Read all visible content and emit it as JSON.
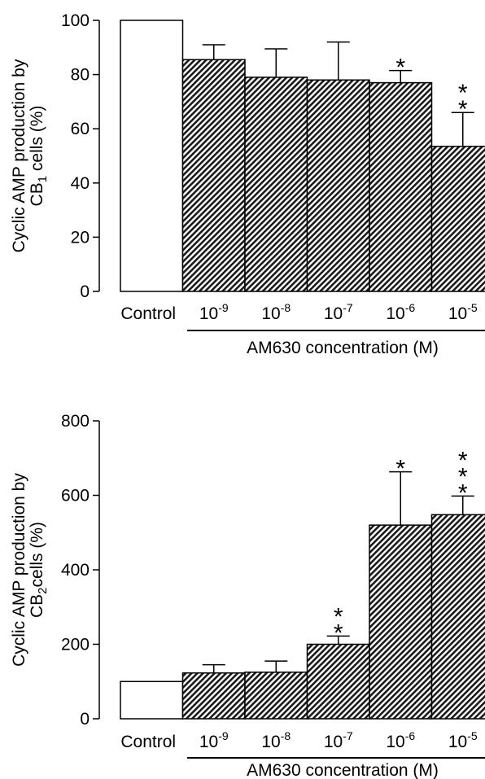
{
  "chart_data": [
    {
      "type": "bar",
      "ylabel_line1": "Cyclic AMP production by",
      "ylabel_line2_pre": "CB",
      "ylabel_line2_sub": "1",
      "ylabel_line2_post": " cells (%)",
      "xlabel": "AM630 concentration (M)",
      "ylim": [
        0,
        100
      ],
      "yticks": [
        "0",
        "20",
        "40",
        "60",
        "80",
        "100"
      ],
      "categories": [
        {
          "base": "Control",
          "exp": ""
        },
        {
          "base": "10",
          "exp": "-9"
        },
        {
          "base": "10",
          "exp": "-8"
        },
        {
          "base": "10",
          "exp": "-7"
        },
        {
          "base": "10",
          "exp": "-6"
        },
        {
          "base": "10",
          "exp": "-5"
        }
      ],
      "values": [
        100,
        85.5,
        79,
        78,
        77,
        53.5
      ],
      "errors": [
        0,
        5.5,
        10.5,
        14,
        4.5,
        12.5
      ],
      "significance": [
        "",
        "",
        "",
        "",
        "*",
        "**"
      ],
      "fills": [
        "#ffffff",
        "#3a3a3a",
        "#3a3a3a",
        "#3a3a3a",
        "#3a3a3a",
        "#3a3a3a"
      ]
    },
    {
      "type": "bar",
      "ylabel_line1": "Cyclic AMP production by",
      "ylabel_line2_pre": "CB",
      "ylabel_line2_sub": "2",
      "ylabel_line2_post": "cells (%)",
      "xlabel": "AM630 concentration (M)",
      "ylim": [
        0,
        800
      ],
      "yticks": [
        "0",
        "200",
        "400",
        "600",
        "800"
      ],
      "categories": [
        {
          "base": "Control",
          "exp": ""
        },
        {
          "base": "10",
          "exp": "-9"
        },
        {
          "base": "10",
          "exp": "-8"
        },
        {
          "base": "10",
          "exp": "-7"
        },
        {
          "base": "10",
          "exp": "-6"
        },
        {
          "base": "10",
          "exp": "-5"
        }
      ],
      "values": [
        100,
        123,
        125,
        200,
        520,
        548
      ],
      "errors": [
        0,
        22,
        30,
        22,
        143,
        50
      ],
      "significance": [
        "",
        "",
        "",
        "**",
        "*",
        "***"
      ],
      "fills": [
        "#ffffff",
        "#3a3a3a",
        "#3a3a3a",
        "#3a3a3a",
        "#3a3a3a",
        "#3a3a3a"
      ]
    }
  ]
}
